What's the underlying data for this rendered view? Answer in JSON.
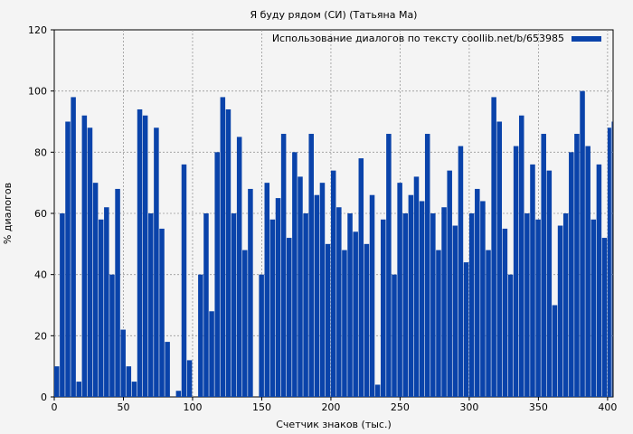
{
  "chart_data": {
    "type": "bar",
    "title": "Я буду рядом (СИ) (Татьяна Ма)",
    "xlabel": "Счетчик знаков (тыс.)",
    "ylabel": "% диалогов",
    "xlim": [
      0,
      404
    ],
    "ylim": [
      0,
      120
    ],
    "xticks": [
      "0",
      "50",
      "100",
      "150",
      "200",
      "250",
      "300",
      "350",
      "400"
    ],
    "yticks": [
      "0",
      "20",
      "40",
      "60",
      "80",
      "100",
      "120"
    ],
    "grid": true,
    "legend": {
      "placement": "top-right"
    },
    "series": [
      {
        "name": "Использование диалогов по тексту coollib.net/b/653985",
        "color": "#0a43aa",
        "x": [
          0,
          4,
          8,
          12,
          16,
          20,
          24,
          28,
          32,
          36,
          40,
          44,
          48,
          52,
          56,
          60,
          64,
          68,
          72,
          76,
          80,
          84,
          88,
          92,
          96,
          100,
          104,
          108,
          112,
          116,
          120,
          124,
          128,
          132,
          136,
          140,
          144,
          148,
          152,
          156,
          160,
          164,
          168,
          172,
          176,
          180,
          184,
          188,
          192,
          196,
          200,
          204,
          208,
          212,
          216,
          220,
          224,
          228,
          232,
          236,
          240,
          244,
          248,
          252,
          256,
          260,
          264,
          268,
          272,
          276,
          280,
          284,
          288,
          292,
          296,
          300,
          304,
          308,
          312,
          316,
          320,
          324,
          328,
          332,
          336,
          340,
          344,
          348,
          352,
          356,
          360,
          364,
          368,
          372,
          376,
          380,
          384,
          388,
          392,
          396,
          400,
          403
        ],
        "values": [
          10,
          60,
          90,
          98,
          5,
          92,
          88,
          70,
          58,
          62,
          40,
          68,
          22,
          10,
          5,
          94,
          92,
          60,
          88,
          55,
          18,
          0,
          2,
          76,
          12,
          0,
          40,
          60,
          28,
          80,
          98,
          94,
          60,
          85,
          48,
          68,
          0,
          40,
          70,
          58,
          65,
          86,
          52,
          80,
          72,
          60,
          86,
          66,
          70,
          50,
          74,
          62,
          48,
          60,
          54,
          78,
          50,
          66,
          4,
          58,
          86,
          40,
          70,
          60,
          66,
          72,
          64,
          86,
          60,
          48,
          62,
          74,
          56,
          82,
          44,
          60,
          68,
          64,
          48,
          98,
          90,
          55,
          40,
          82,
          92,
          60,
          76,
          58,
          86,
          74,
          30,
          56,
          60,
          80,
          86,
          100,
          82,
          58,
          76,
          52,
          88,
          90
        ]
      }
    ]
  }
}
